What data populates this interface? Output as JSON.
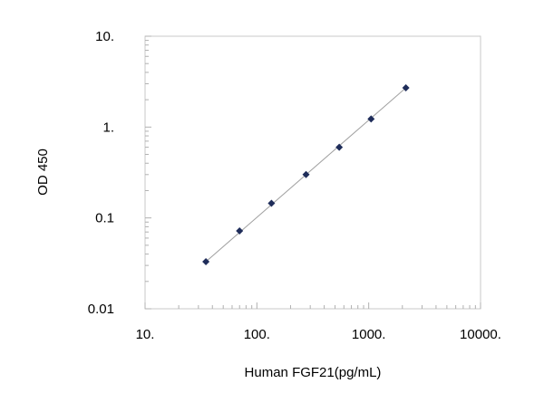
{
  "chart_data": {
    "type": "scatter",
    "xlabel": "Human FGF21(pg/mL)",
    "ylabel": "OD 450",
    "x_scale": "log",
    "y_scale": "log",
    "xlim": [
      10,
      10000
    ],
    "ylim": [
      0.01,
      10
    ],
    "x_ticks": [
      {
        "value": 10,
        "label": "10."
      },
      {
        "value": 100,
        "label": "100."
      },
      {
        "value": 1000,
        "label": "1000."
      },
      {
        "value": 10000,
        "label": "10000."
      }
    ],
    "y_ticks": [
      {
        "value": 10,
        "label": "10."
      },
      {
        "value": 1,
        "label": "1."
      },
      {
        "value": 0.1,
        "label": "0.1"
      },
      {
        "value": 0.01,
        "label": "0.01"
      }
    ],
    "grid": false,
    "trendline": true,
    "marker": "diamond",
    "marker_color": "#1f2d5a",
    "line_color": "#a0a0a0",
    "points": [
      {
        "x": 35,
        "y": 0.033
      },
      {
        "x": 70,
        "y": 0.072
      },
      {
        "x": 135,
        "y": 0.145
      },
      {
        "x": 275,
        "y": 0.3
      },
      {
        "x": 545,
        "y": 0.6
      },
      {
        "x": 1050,
        "y": 1.23
      },
      {
        "x": 2150,
        "y": 2.7
      }
    ]
  }
}
